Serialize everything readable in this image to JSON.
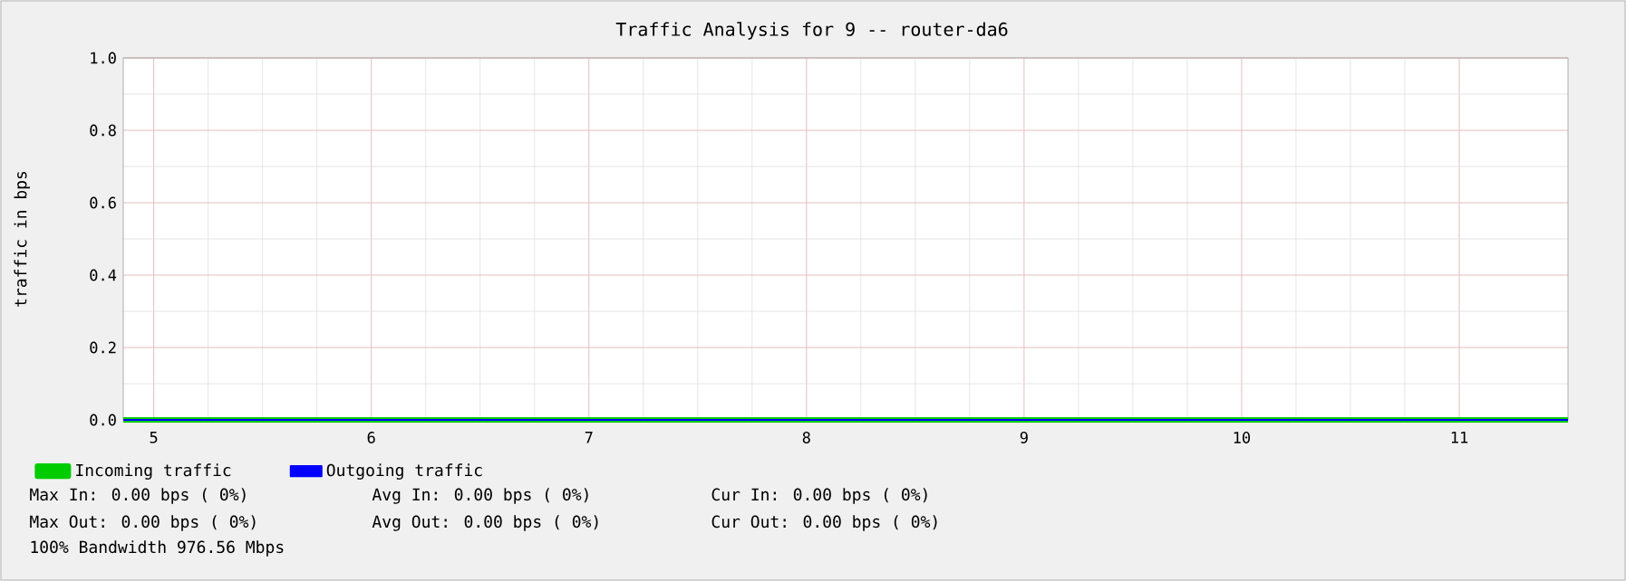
{
  "chart_data": {
    "type": "line",
    "title": "Traffic Analysis for 9 -- router-da6",
    "ylabel": "traffic in bps",
    "x": [
      4.86,
      11.5
    ],
    "series": [
      {
        "name": "Incoming traffic",
        "color": "#00cc00",
        "values": [
          0,
          0
        ]
      },
      {
        "name": "Outgoing traffic",
        "color": "#0000ff",
        "values": [
          0,
          0
        ]
      }
    ],
    "xlim": [
      4.86,
      11.5
    ],
    "xticks": [
      5,
      6,
      7,
      8,
      9,
      10,
      11
    ],
    "ylim": [
      0,
      1
    ],
    "yticks": [
      {
        "value": 0,
        "label": "0.0"
      },
      {
        "value": 0.2,
        "label": "0.2"
      },
      {
        "value": 0.4,
        "label": "0.4"
      },
      {
        "value": 0.6,
        "label": "0.6"
      },
      {
        "value": 0.8,
        "label": "0.8"
      },
      {
        "value": 1,
        "label": "1.0"
      }
    ],
    "grid": true,
    "legend": "bottom",
    "marker": "none",
    "line_style": "solid",
    "annotations": [
      "Max In: 0.00 bps ( 0%)",
      "Avg In: 0.00 bps ( 0%)",
      "Cur In: 0.00 bps ( 0%)",
      "Max Out: 0.00 bps ( 0%)",
      "Avg Out: 0.00 bps ( 0%)",
      "Cur Out: 0.00 bps ( 0%)",
      "100% Bandwidth 976.56 Mbps"
    ]
  }
}
